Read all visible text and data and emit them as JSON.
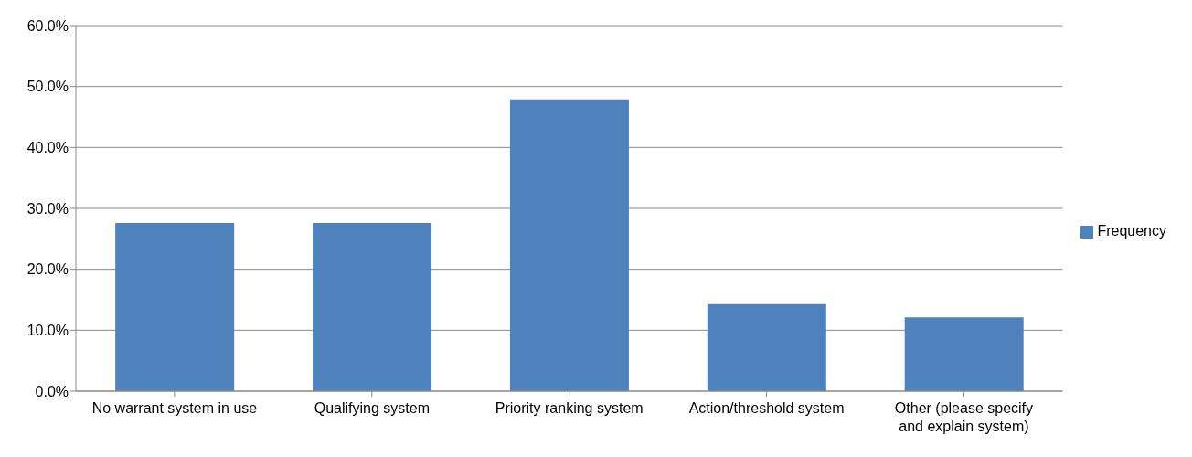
{
  "chart_data": {
    "type": "bar",
    "categories": [
      "No warrant system in use",
      "Qualifying system",
      "Priority ranking system",
      "Action/threshold system",
      "Other (please specify and explain system)"
    ],
    "series": [
      {
        "name": "Frequency",
        "color": "#4f81bd",
        "values": [
          27.6,
          27.6,
          47.9,
          14.3,
          12.1
        ]
      }
    ],
    "ylim": [
      0,
      60
    ],
    "yticks": [
      {
        "value": 0,
        "label": "0.0%"
      },
      {
        "value": 10,
        "label": "10.0%"
      },
      {
        "value": 20,
        "label": "20.0%"
      },
      {
        "value": 30,
        "label": "30.0%"
      },
      {
        "value": 40,
        "label": "40.0%"
      },
      {
        "value": 50,
        "label": "50.0%"
      },
      {
        "value": 60,
        "label": "60.0%"
      }
    ],
    "grid": "y",
    "legend": "right"
  }
}
